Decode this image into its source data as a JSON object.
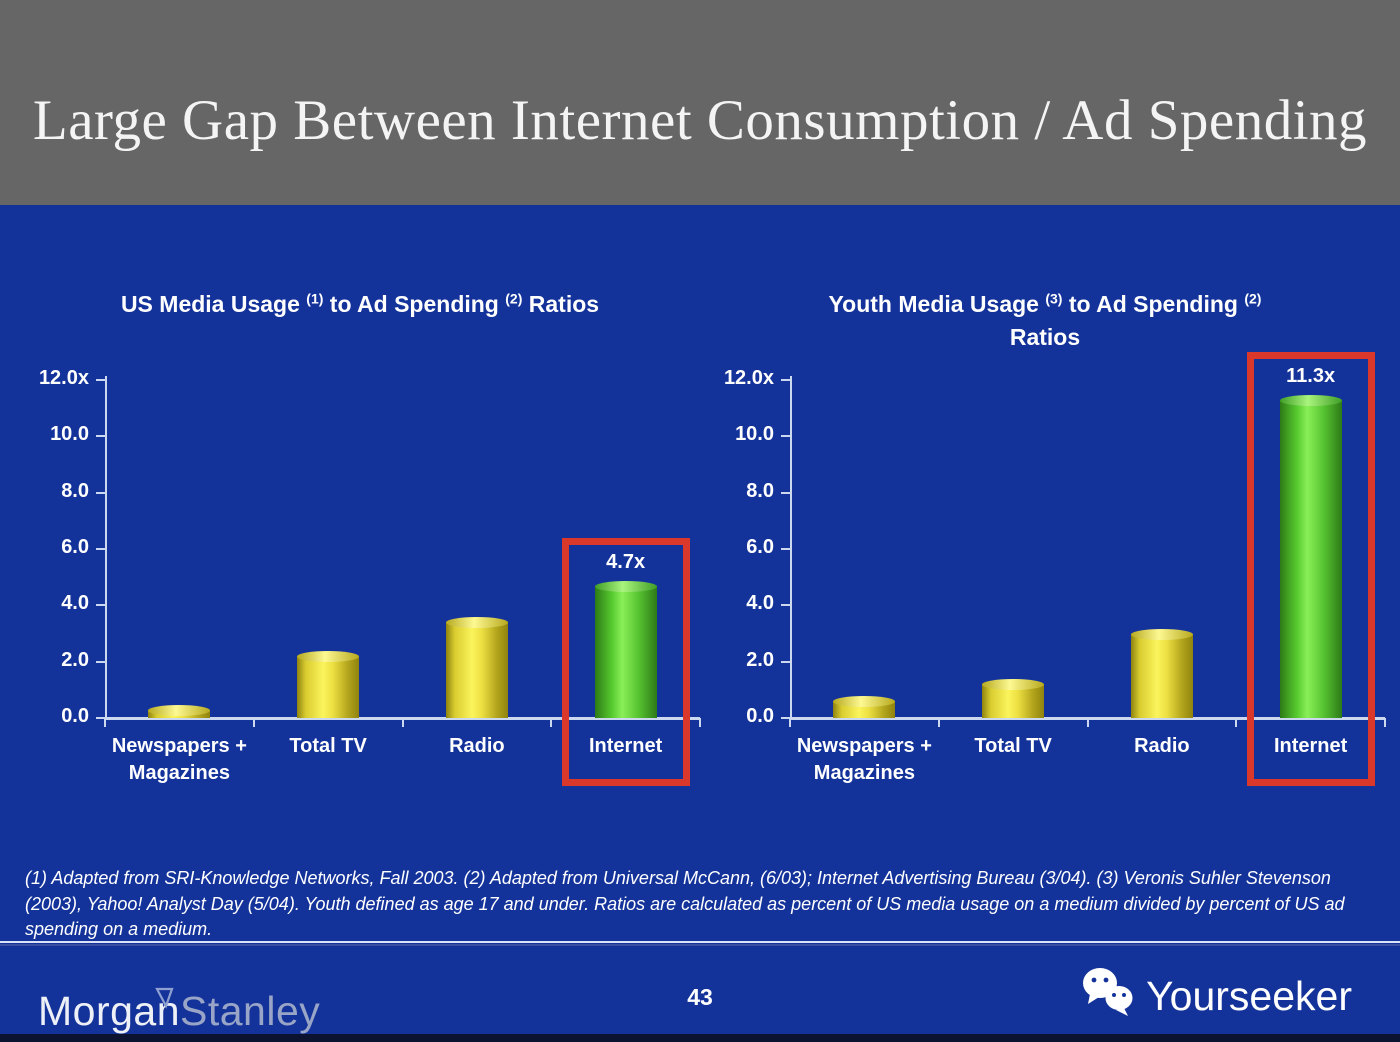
{
  "slide": {
    "title": "Large Gap Between Internet Consumption / Ad Spending",
    "page_number": "43"
  },
  "colors": {
    "background_blue": "#14339A",
    "header_gray": "#666666",
    "bar_yellow": "#F2E93F",
    "bar_green_highlight": "#63D33A",
    "highlight_red": "#DA382A",
    "axis_white": "#CCD7F0",
    "text_white": "#FFFFFF"
  },
  "chart_data": [
    {
      "type": "bar",
      "title": "US Media Usage (1) to Ad Spending (2) Ratios",
      "title_segments": [
        {
          "text": "US Media Usage "
        },
        {
          "sup": "(1)"
        },
        {
          "text": " to Ad Spending "
        },
        {
          "sup": "(2)"
        },
        {
          "text": " Ratios"
        }
      ],
      "categories": [
        "Newspapers + Magazines",
        "Total TV",
        "Radio",
        "Internet"
      ],
      "values": [
        0.3,
        2.2,
        3.4,
        4.7
      ],
      "highlight_index": 3,
      "highlight_label": "4.7x",
      "ylim": [
        0,
        12
      ],
      "yticks": [
        {
          "label": "12.0x",
          "value": 12
        },
        {
          "label": "10.0",
          "value": 10
        },
        {
          "label": "8.0",
          "value": 8
        },
        {
          "label": "6.0",
          "value": 6
        },
        {
          "label": "4.0",
          "value": 4
        },
        {
          "label": "2.0",
          "value": 2
        },
        {
          "label": "0.0",
          "value": 0
        }
      ],
      "grid": false,
      "legend": "none"
    },
    {
      "type": "bar",
      "title": "Youth Media Usage (3) to Ad Spending (2) Ratios",
      "title_segments": [
        {
          "text": "Youth Media Usage "
        },
        {
          "sup": "(3)"
        },
        {
          "text": " to Ad Spending "
        },
        {
          "sup": "(2)"
        },
        {
          "break": true
        },
        {
          "text": "Ratios"
        }
      ],
      "categories": [
        "Newspapers + Magazines",
        "Total TV",
        "Radio",
        "Internet"
      ],
      "values": [
        0.6,
        1.2,
        3.0,
        11.3
      ],
      "highlight_index": 3,
      "highlight_label": "11.3x",
      "ylim": [
        0,
        12
      ],
      "yticks": [
        {
          "label": "12.0x",
          "value": 12
        },
        {
          "label": "10.0",
          "value": 10
        },
        {
          "label": "8.0",
          "value": 8
        },
        {
          "label": "6.0",
          "value": 6
        },
        {
          "label": "4.0",
          "value": 4
        },
        {
          "label": "2.0",
          "value": 2
        },
        {
          "label": "0.0",
          "value": 0
        }
      ],
      "grid": false,
      "legend": "none"
    }
  ],
  "footnote": {
    "text": "(1) Adapted from SRI-Knowledge Networks, Fall 2003.  (2) Adapted from Universal McCann, (6/03); Internet Advertising Bureau (3/04). (3) Veronis Suhler Stevenson (2003), Yahoo! Analyst Day (5/04).  Youth defined as age 17 and under.  Ratios are calculated as percent of US media usage on a medium divided by percent of US ad spending on a medium."
  },
  "footer": {
    "page_number": "43",
    "brand_left_part1": "Morgan",
    "brand_left_part2": "Stanley",
    "brand_right": "Yourseeker"
  }
}
